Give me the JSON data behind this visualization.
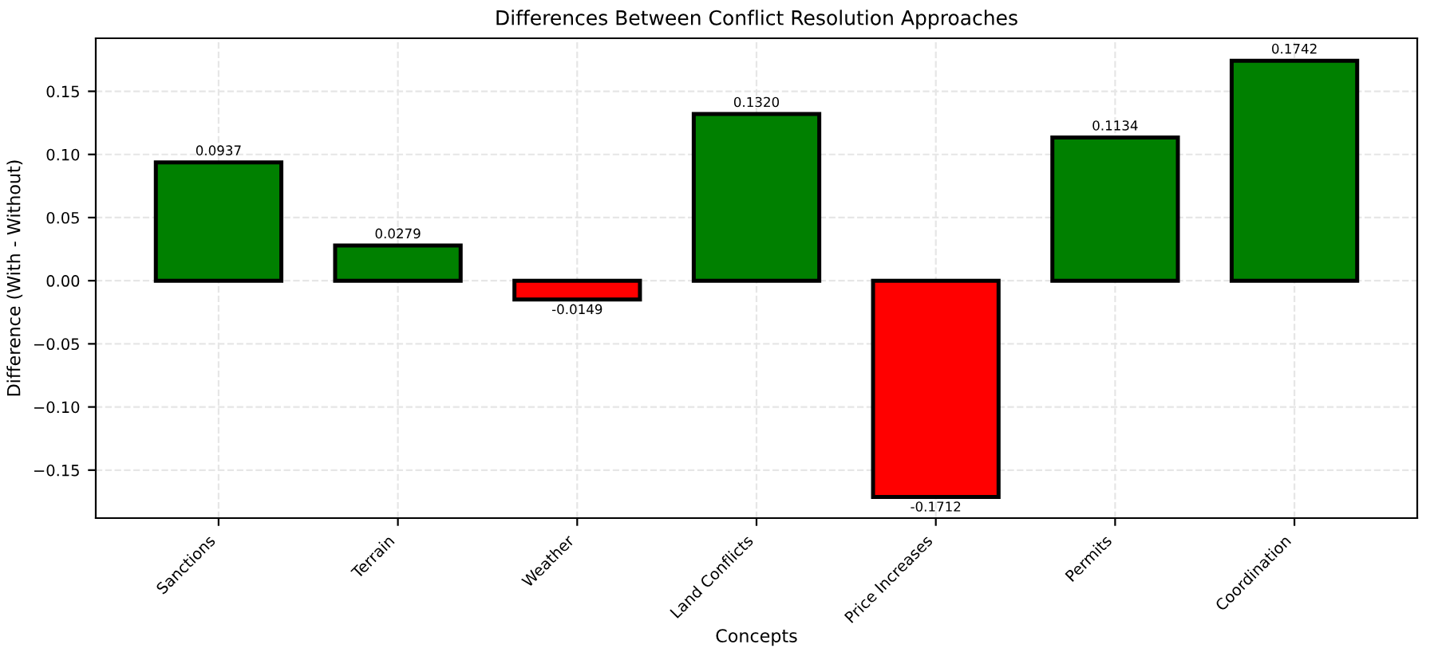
{
  "chart_data": {
    "type": "bar",
    "title": "Differences Between Conflict Resolution Approaches",
    "xlabel": "Concepts",
    "ylabel": "Difference (With - Without)",
    "categories": [
      "Sanctions",
      "Terrain",
      "Weather",
      "Land Conflicts",
      "Price Increases",
      "Permits",
      "Coordination"
    ],
    "values": [
      0.0937,
      0.0279,
      -0.0149,
      0.132,
      -0.1712,
      0.1134,
      0.1742
    ],
    "value_labels": [
      "0.0937",
      "0.0279",
      "-0.0149",
      "0.1320",
      "-0.1712",
      "0.1134",
      "0.1742"
    ],
    "colors": [
      "#008000",
      "#008000",
      "#ff0000",
      "#008000",
      "#ff0000",
      "#008000",
      "#008000"
    ],
    "ylim": [
      -0.188,
      0.192
    ],
    "yticks": [
      {
        "value": -0.15,
        "label": "−0.15"
      },
      {
        "value": -0.1,
        "label": "−0.10"
      },
      {
        "value": -0.05,
        "label": "−0.05"
      },
      {
        "value": 0,
        "label": "0.00"
      },
      {
        "value": 0.05,
        "label": "0.05"
      },
      {
        "value": 0.1,
        "label": "0.10"
      },
      {
        "value": 0.15,
        "label": "0.15"
      }
    ],
    "grid": true
  }
}
